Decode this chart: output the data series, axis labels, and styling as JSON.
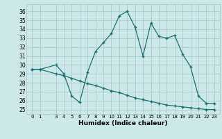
{
  "xlabel": "Humidex (Indice chaleur)",
  "bg_color": "#cce8e8",
  "grid_color": "#aacccc",
  "line_color": "#1a7070",
  "ylim": [
    24.5,
    36.8
  ],
  "xlim": [
    -0.7,
    23.7
  ],
  "yticks": [
    25,
    26,
    27,
    28,
    29,
    30,
    31,
    32,
    33,
    34,
    35,
    36
  ],
  "xticks": [
    0,
    1,
    3,
    4,
    5,
    6,
    7,
    8,
    9,
    10,
    11,
    12,
    13,
    14,
    15,
    16,
    17,
    18,
    19,
    20,
    21,
    22,
    23
  ],
  "s1_x": [
    0,
    1,
    3,
    4,
    5,
    6,
    7,
    8,
    9,
    10,
    11,
    12,
    13,
    14,
    15,
    16,
    17,
    18,
    19,
    20,
    21,
    22,
    23
  ],
  "s1_y": [
    29.5,
    29.5,
    30.0,
    29.0,
    26.5,
    25.8,
    29.2,
    31.5,
    32.5,
    33.5,
    35.5,
    36.0,
    34.2,
    31.0,
    34.7,
    33.2,
    33.0,
    33.3,
    31.2,
    29.8,
    26.5,
    25.7,
    25.7
  ],
  "s2_x": [
    0,
    1,
    3,
    4,
    5,
    6,
    7,
    8,
    9,
    10,
    11,
    12,
    13,
    14,
    15,
    16,
    17,
    18,
    19,
    20,
    21,
    22,
    23
  ],
  "s2_y": [
    29.5,
    29.5,
    29.0,
    28.8,
    28.5,
    28.2,
    27.9,
    27.7,
    27.4,
    27.1,
    26.9,
    26.6,
    26.3,
    26.1,
    25.9,
    25.7,
    25.5,
    25.4,
    25.3,
    25.2,
    25.1,
    25.0,
    25.0
  ]
}
